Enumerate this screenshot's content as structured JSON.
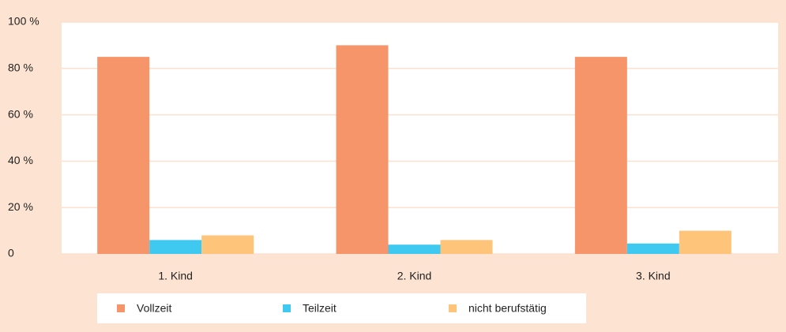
{
  "chart_data": {
    "type": "bar",
    "categories": [
      "1. Kind",
      "2. Kind",
      "3. Kind"
    ],
    "series": [
      {
        "name": "Vollzeit",
        "color": "#f7956a",
        "values": [
          85,
          90,
          85
        ]
      },
      {
        "name": "Teilzeit",
        "color": "#3fc8f0",
        "values": [
          6,
          4,
          4.5
        ]
      },
      {
        "name": "nicht berufstätig",
        "color": "#fdc47a",
        "values": [
          8,
          6,
          10
        ]
      }
    ],
    "ylim": [
      0,
      100
    ],
    "yticks": [
      0,
      {
        "value": 20,
        "label": "20 %"
      },
      {
        "value": 40,
        "label": "40 %"
      },
      {
        "value": 60,
        "label": "60 %"
      },
      {
        "value": 80,
        "label": "80 %"
      },
      {
        "value": 100,
        "label": "100 %"
      }
    ],
    "grid": true
  }
}
